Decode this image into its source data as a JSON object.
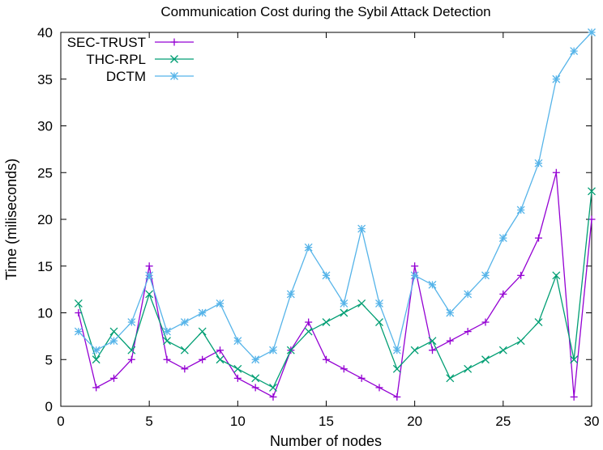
{
  "chart_data": {
    "type": "line",
    "title": "Communication Cost during the Sybil Attack Detection",
    "xlabel": "Number of nodes",
    "ylabel": "Time (miliseconds)",
    "xlim": [
      0,
      30
    ],
    "ylim": [
      0,
      40
    ],
    "xticks": [
      0,
      5,
      10,
      15,
      20,
      25,
      30
    ],
    "yticks": [
      0,
      5,
      10,
      15,
      20,
      25,
      30,
      35,
      40
    ],
    "grid": false,
    "legend_position": "top-left",
    "x": [
      1,
      2,
      3,
      4,
      5,
      6,
      7,
      8,
      9,
      10,
      11,
      12,
      13,
      14,
      15,
      16,
      17,
      18,
      19,
      20,
      21,
      22,
      23,
      24,
      25,
      26,
      27,
      28,
      29,
      30
    ],
    "series": [
      {
        "name": "SEC-TRUST",
        "color": "#9400d3",
        "marker": "plus",
        "values": [
          10,
          2,
          3,
          5,
          15,
          5,
          4,
          5,
          6,
          3,
          2,
          1,
          6,
          9,
          5,
          4,
          3,
          2,
          1,
          15,
          6,
          7,
          8,
          9,
          12,
          14,
          18,
          25,
          1,
          20
        ]
      },
      {
        "name": "THC-RPL",
        "color": "#009e73",
        "marker": "cross",
        "values": [
          11,
          5,
          8,
          6,
          12,
          7,
          6,
          8,
          5,
          4,
          3,
          2,
          6,
          8,
          9,
          10,
          11,
          9,
          4,
          6,
          7,
          3,
          4,
          5,
          6,
          7,
          9,
          14,
          5,
          23
        ]
      },
      {
        "name": "DCTM",
        "color": "#56b4e9",
        "marker": "star",
        "values": [
          8,
          6,
          7,
          9,
          14,
          8,
          9,
          10,
          11,
          7,
          5,
          6,
          12,
          17,
          14,
          11,
          19,
          11,
          6,
          14,
          13,
          10,
          12,
          14,
          18,
          21,
          26,
          35,
          38,
          40
        ]
      }
    ]
  }
}
